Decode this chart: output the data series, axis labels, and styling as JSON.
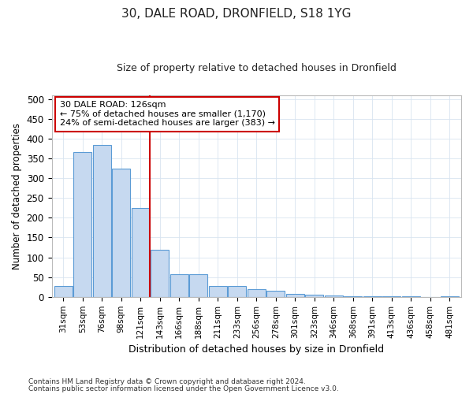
{
  "title1": "30, DALE ROAD, DRONFIELD, S18 1YG",
  "title2": "Size of property relative to detached houses in Dronfield",
  "xlabel": "Distribution of detached houses by size in Dronfield",
  "ylabel": "Number of detached properties",
  "bar_labels": [
    "31sqm",
    "53sqm",
    "76sqm",
    "98sqm",
    "121sqm",
    "143sqm",
    "166sqm",
    "188sqm",
    "211sqm",
    "233sqm",
    "256sqm",
    "278sqm",
    "301sqm",
    "323sqm",
    "346sqm",
    "368sqm",
    "391sqm",
    "413sqm",
    "436sqm",
    "458sqm",
    "481sqm"
  ],
  "bar_values": [
    27,
    365,
    383,
    325,
    225,
    120,
    57,
    57,
    27,
    27,
    20,
    15,
    8,
    5,
    3,
    2,
    1,
    1,
    1,
    0,
    1
  ],
  "bar_color": "#c6d9f0",
  "bar_edge_color": "#5b9bd5",
  "vline_x_index": 4,
  "vline_color": "#cc0000",
  "annotation_text": "30 DALE ROAD: 126sqm\n← 75% of detached houses are smaller (1,170)\n24% of semi-detached houses are larger (383) →",
  "annotation_box_color": "#ffffff",
  "annotation_box_edge": "#cc0000",
  "ylim": [
    0,
    510
  ],
  "yticks": [
    0,
    50,
    100,
    150,
    200,
    250,
    300,
    350,
    400,
    450,
    500
  ],
  "footer1": "Contains HM Land Registry data © Crown copyright and database right 2024.",
  "footer2": "Contains public sector information licensed under the Open Government Licence v3.0.",
  "figsize": [
    6.0,
    5.0
  ],
  "dpi": 100,
  "bg_color": "#ffffff",
  "grid_color": "#d8e4f0"
}
